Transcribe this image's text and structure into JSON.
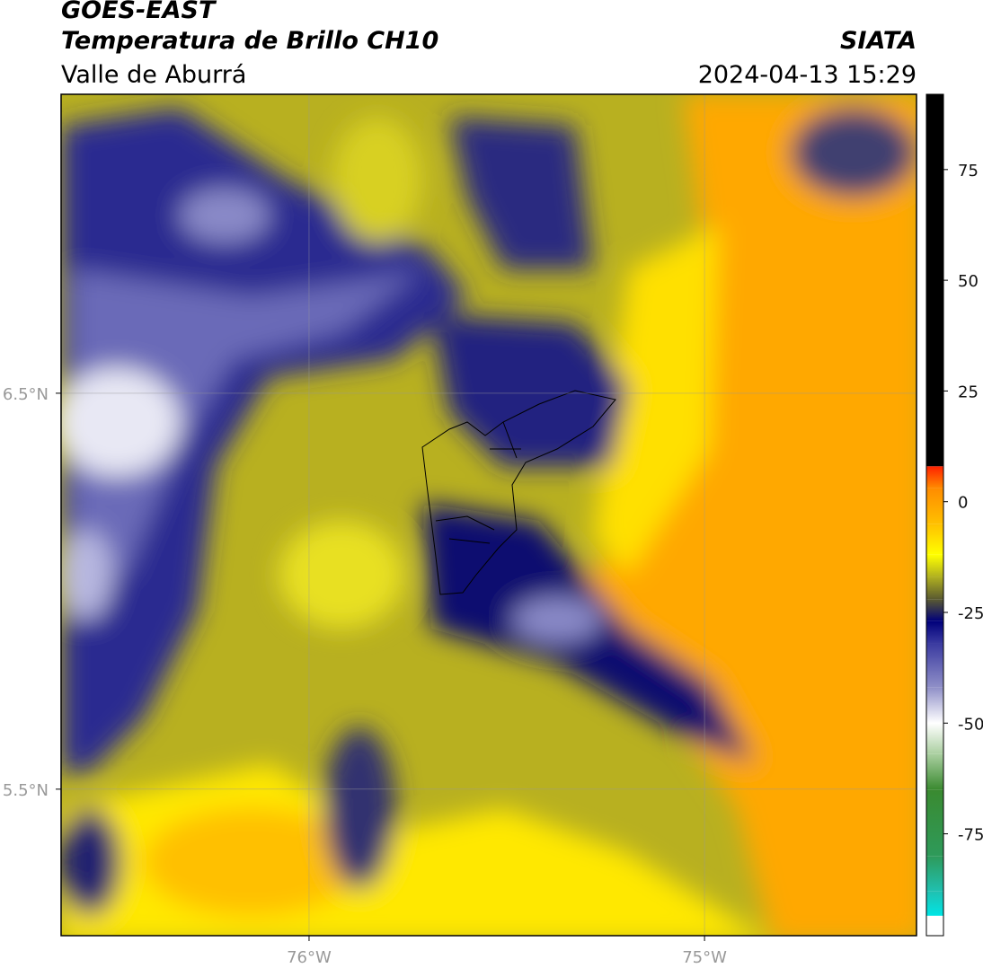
{
  "header": {
    "title": "GOES-EAST",
    "subtitle": "Temperatura de Brillo CH10",
    "region": "Valle de Aburrá",
    "source": "SIATA",
    "datetime": "2024-04-13 15:29"
  },
  "map": {
    "xlim": [
      -76.627,
      -74.464
    ],
    "ylim": [
      5.13,
      7.255
    ],
    "xticks": [
      {
        "value": -76,
        "label": "76°W"
      },
      {
        "value": -75,
        "label": "75°W"
      }
    ],
    "yticks": [
      {
        "value": 6.5,
        "label": "6.5°N"
      },
      {
        "value": 5.5,
        "label": "5.5°N"
      }
    ],
    "grid": true
  },
  "colorbar": {
    "lim": [
      -98,
      92
    ],
    "ticks": [
      75,
      50,
      25,
      0,
      -25,
      -50,
      -75
    ],
    "stops": [
      {
        "value": -98,
        "color": "#ffffff"
      },
      {
        "value": -93.5,
        "color": "#ffffff"
      },
      {
        "value": -93.5,
        "color": "#00e5e5"
      },
      {
        "value": -88,
        "color": "#20c0b0"
      },
      {
        "value": -80,
        "color": "#2e9a5a"
      },
      {
        "value": -65,
        "color": "#3a8a30"
      },
      {
        "value": -57,
        "color": "#aacfa0"
      },
      {
        "value": -50,
        "color": "#ffffff"
      },
      {
        "value": -42,
        "color": "#9090c8"
      },
      {
        "value": -32,
        "color": "#3a3aa0"
      },
      {
        "value": -27,
        "color": "#00007a"
      },
      {
        "value": -22,
        "color": "#5a5a30"
      },
      {
        "value": -17,
        "color": "#b0b020"
      },
      {
        "value": -12,
        "color": "#ffff00"
      },
      {
        "value": -5,
        "color": "#ffc000"
      },
      {
        "value": 3,
        "color": "#ff8c00"
      },
      {
        "value": 8,
        "color": "#ff2000"
      },
      {
        "value": 8,
        "color": "#000000"
      },
      {
        "value": 92,
        "color": "#000000"
      }
    ]
  }
}
